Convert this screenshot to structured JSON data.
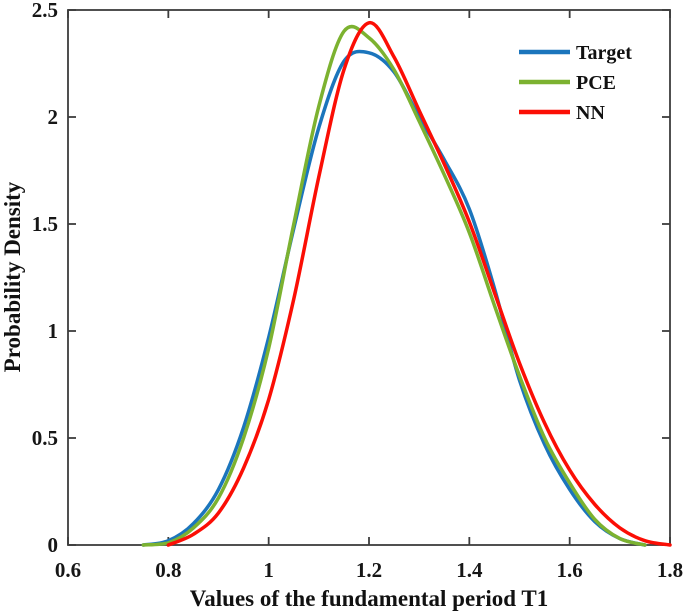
{
  "figure": {
    "background": "#ffffff",
    "axis_color": "#3c3c3c",
    "text_color": "#111111"
  },
  "chart_data": {
    "type": "line",
    "title": "",
    "xlabel": "Values of the fundamental period T1",
    "ylabel": "Probability Density",
    "xlim": [
      0.6,
      1.8
    ],
    "ylim": [
      0,
      2.5
    ],
    "grid": false,
    "box": true,
    "tick_direction": "in",
    "legend_position": "upper-right",
    "xticks": {
      "values": [
        0.6,
        0.8,
        1.0,
        1.2,
        1.4,
        1.6,
        1.8
      ],
      "labels": [
        "0.6",
        "0.8",
        "1",
        "1.2",
        "1.4",
        "1.6",
        "1.8"
      ]
    },
    "yticks": {
      "values": [
        0,
        0.5,
        1.0,
        1.5,
        2.0,
        2.5
      ],
      "labels": [
        "0",
        "0.5",
        "1",
        "1.5",
        "2",
        "2.5"
      ]
    },
    "x": [
      0.75,
      0.8,
      0.85,
      0.9,
      0.95,
      1.0,
      1.05,
      1.1,
      1.15,
      1.2,
      1.25,
      1.3,
      1.35,
      1.4,
      1.45,
      1.5,
      1.55,
      1.6,
      1.65,
      1.7,
      1.75,
      1.8
    ],
    "series": [
      {
        "name": "Target",
        "color": "#1b75bc",
        "values": [
          0,
          0.02,
          0.1,
          0.26,
          0.55,
          0.97,
          1.48,
          1.95,
          2.26,
          2.3,
          2.21,
          2.0,
          1.8,
          1.57,
          1.2,
          0.77,
          0.47,
          0.26,
          0.11,
          0.03,
          0,
          0
        ]
      },
      {
        "name": "PCE",
        "color": "#7cb230",
        "values": [
          0,
          0.01,
          0.08,
          0.22,
          0.5,
          0.92,
          1.5,
          2.05,
          2.4,
          2.37,
          2.22,
          1.98,
          1.73,
          1.46,
          1.12,
          0.79,
          0.5,
          0.29,
          0.12,
          0.03,
          0,
          0
        ]
      },
      {
        "name": "NN",
        "color": "#fb0e05",
        "values": [
          0,
          0,
          0.05,
          0.15,
          0.36,
          0.68,
          1.15,
          1.72,
          2.22,
          2.44,
          2.28,
          2.03,
          1.78,
          1.51,
          1.18,
          0.85,
          0.57,
          0.35,
          0.19,
          0.08,
          0.02,
          0
        ]
      }
    ]
  }
}
